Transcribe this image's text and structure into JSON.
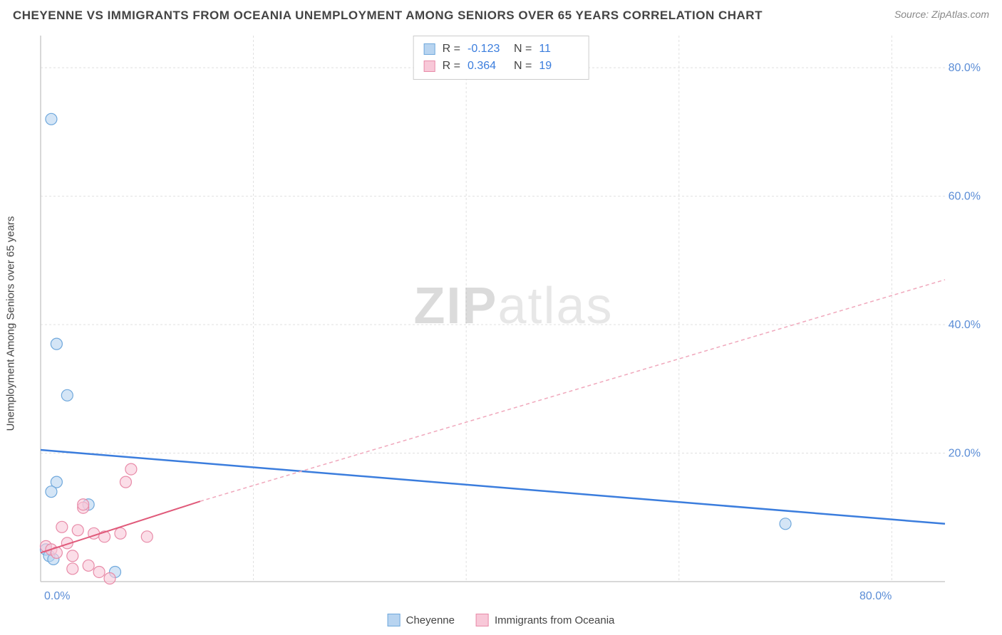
{
  "title": "CHEYENNE VS IMMIGRANTS FROM OCEANIA UNEMPLOYMENT AMONG SENIORS OVER 65 YEARS CORRELATION CHART",
  "source": "Source: ZipAtlas.com",
  "y_axis_title": "Unemployment Among Seniors over 65 years",
  "watermark_a": "ZIP",
  "watermark_b": "atlas",
  "chart": {
    "type": "scatter",
    "xlim": [
      0,
      85
    ],
    "ylim": [
      0,
      85
    ],
    "x_ticks": [
      0,
      20,
      40,
      60,
      80
    ],
    "y_ticks": [
      20,
      40,
      60,
      80
    ],
    "x_tick_labels": [
      "0.0%",
      "",
      "",
      "",
      "80.0%"
    ],
    "y_tick_labels": [
      "20.0%",
      "40.0%",
      "60.0%",
      "80.0%"
    ],
    "grid_color": "#e0e0e0",
    "axis_color": "#cccccc",
    "background": "#ffffff",
    "tick_label_color": "#5b8dd6",
    "tick_label_fontsize": 16,
    "series": [
      {
        "name": "Cheyenne",
        "color_fill": "#b8d4f0",
        "color_stroke": "#6fa8dc",
        "marker_radius": 8,
        "points": [
          {
            "x": 1.0,
            "y": 72.0
          },
          {
            "x": 1.5,
            "y": 37.0
          },
          {
            "x": 2.5,
            "y": 29.0
          },
          {
            "x": 1.5,
            "y": 15.5
          },
          {
            "x": 1.0,
            "y": 14.0
          },
          {
            "x": 4.5,
            "y": 12.0
          },
          {
            "x": 0.5,
            "y": 5.0
          },
          {
            "x": 0.8,
            "y": 4.0
          },
          {
            "x": 1.2,
            "y": 3.5
          },
          {
            "x": 7.0,
            "y": 1.5
          },
          {
            "x": 70.0,
            "y": 9.0
          }
        ],
        "trendline": {
          "x1": 0,
          "y1": 20.5,
          "x2": 85,
          "y2": 9.0,
          "color": "#3b7ddd",
          "width": 2.5,
          "dash": "none"
        }
      },
      {
        "name": "Immigrants from Oceania",
        "color_fill": "#f8c8d8",
        "color_stroke": "#e88ba8",
        "marker_radius": 8,
        "points": [
          {
            "x": 0.5,
            "y": 5.5
          },
          {
            "x": 1.0,
            "y": 5.0
          },
          {
            "x": 1.5,
            "y": 4.5
          },
          {
            "x": 2.0,
            "y": 8.5
          },
          {
            "x": 2.5,
            "y": 6.0
          },
          {
            "x": 3.0,
            "y": 4.0
          },
          {
            "x": 3.0,
            "y": 2.0
          },
          {
            "x": 3.5,
            "y": 8.0
          },
          {
            "x": 4.0,
            "y": 11.5
          },
          {
            "x": 4.5,
            "y": 2.5
          },
          {
            "x": 5.0,
            "y": 7.5
          },
          {
            "x": 5.5,
            "y": 1.5
          },
          {
            "x": 6.0,
            "y": 7.0
          },
          {
            "x": 6.5,
            "y": 0.5
          },
          {
            "x": 7.5,
            "y": 7.5
          },
          {
            "x": 8.0,
            "y": 15.5
          },
          {
            "x": 8.5,
            "y": 17.5
          },
          {
            "x": 10.0,
            "y": 7.0
          },
          {
            "x": 4.0,
            "y": 12.0
          }
        ],
        "trendline_solid": {
          "x1": 0,
          "y1": 4.5,
          "x2": 15,
          "y2": 12.5,
          "color": "#e05a7a",
          "width": 2,
          "dash": "none"
        },
        "trendline_dash": {
          "x1": 15,
          "y1": 12.5,
          "x2": 85,
          "y2": 47.0,
          "color": "#f0a8bc",
          "width": 1.5,
          "dash": "5,4"
        }
      }
    ]
  },
  "stats_legend": [
    {
      "swatch_fill": "#b8d4f0",
      "swatch_stroke": "#6fa8dc",
      "r_label": "R =",
      "r_value": "-0.123",
      "n_label": "N =",
      "n_value": "11"
    },
    {
      "swatch_fill": "#f8c8d8",
      "swatch_stroke": "#e88ba8",
      "r_label": "R =",
      "r_value": "0.364",
      "n_label": "N =",
      "n_value": "19"
    }
  ],
  "bottom_legend": [
    {
      "swatch_fill": "#b8d4f0",
      "swatch_stroke": "#6fa8dc",
      "label": "Cheyenne"
    },
    {
      "swatch_fill": "#f8c8d8",
      "swatch_stroke": "#e88ba8",
      "label": "Immigrants from Oceania"
    }
  ]
}
